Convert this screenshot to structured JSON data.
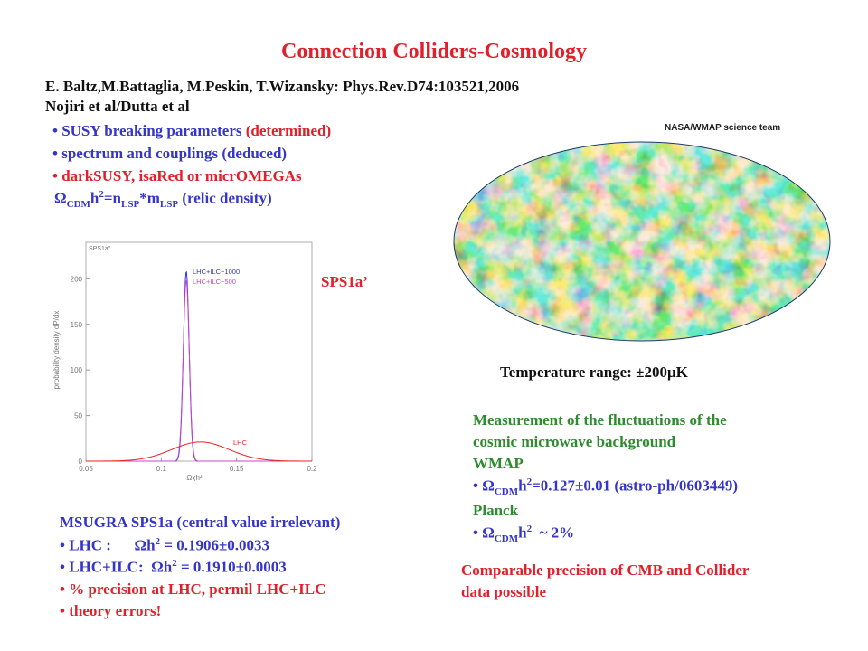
{
  "title": "Connection Colliders-Cosmology",
  "authors": {
    "line1": "E. Baltz,M.Battaglia, M.Peskin, T.Wizansky: Phys.Rev.D74:103521,2006",
    "line2": "Nojiri et al/Dutta et al"
  },
  "bullets_top": [
    {
      "text": "SUSY breaking parameters",
      "note": "(determined)"
    },
    {
      "text": "spectrum and couplings (deduced)"
    },
    {
      "text": "darkSUSY, isaRed or micrOMEGAs"
    }
  ],
  "relic_formula": {
    "omega": "Ω",
    "cdm": "CDM",
    "h": "h",
    "two": "2",
    "eq_n": "=n",
    "lsp": "LSP",
    "star_m": "*m",
    "lsp2": "LSP",
    "label": "(relic density)"
  },
  "sps_label": "SPS1a’",
  "nasa_credit": "NASA/WMAP  science team",
  "temperature": "Temperature range: ±200μK",
  "measurement": {
    "line1": "Measurement of the fluctuations of the",
    "line2": "cosmic microwave background",
    "wmap": "WMAP",
    "wmap_value": "=0.127±0.01 (astro-ph/0603449)",
    "planck": "Planck",
    "planck_value": "~ 2%"
  },
  "msugra": {
    "heading": "MSUGRA SPS1a (central value irrelevant)",
    "lhc_label": "LHC :",
    "lhc_value": " = 0.1906±0.0033",
    "lhcilc_label": "LHC+ILC:",
    "lhcilc_value": " = 0.1910±0.0003",
    "precision": "% precision at LHC, permil LHC+ILC",
    "theory": "theory errors!"
  },
  "conclusion": {
    "line1": "Comparable precision of CMB and Collider",
    "line2": "data possible"
  },
  "chart_data": {
    "type": "line",
    "title": "SPS1a\"",
    "xlabel": "Ωχh²",
    "ylabel": "probability density dP/dx",
    "xlim": [
      0.05,
      0.2
    ],
    "ylim": [
      0,
      240
    ],
    "x_ticks": [
      "0.05",
      "0.1",
      "0.15",
      "0.2"
    ],
    "y_ticks": [
      "0",
      "50",
      "100",
      "150",
      "200"
    ],
    "series": [
      {
        "name": "LHC+ILC−1000",
        "color": "#3333dd",
        "peak_x": 0.1166,
        "peak_y": 208,
        "sigma": 0.0019
      },
      {
        "name": "LHC+ILC−500",
        "color": "#cc44cc",
        "peak_x": 0.1166,
        "peak_y": 198,
        "sigma": 0.002
      },
      {
        "name": "LHC",
        "color": "#ee2222",
        "peak_x": 0.126,
        "peak_y": 21,
        "sigma": 0.019
      }
    ]
  }
}
